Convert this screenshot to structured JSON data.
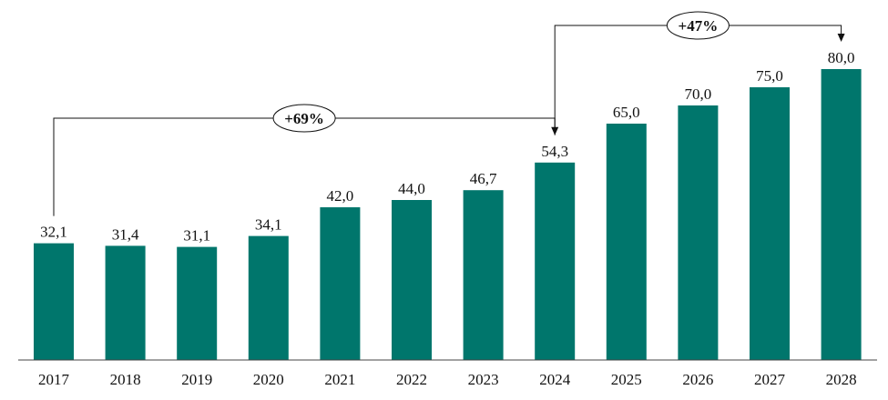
{
  "chart_data": {
    "type": "bar",
    "categories": [
      "2017",
      "2018",
      "2019",
      "2020",
      "2021",
      "2022",
      "2023",
      "2024",
      "2025",
      "2026",
      "2027",
      "2028"
    ],
    "values": [
      32.1,
      31.4,
      31.1,
      34.1,
      42.0,
      44.0,
      46.7,
      54.3,
      65.0,
      70.0,
      75.0,
      80.0
    ],
    "data_labels": [
      "32,1",
      "31,4",
      "31,1",
      "34,1",
      "42,0",
      "44,0",
      "46,7",
      "54,3",
      "65,0",
      "70,0",
      "75,0",
      "80,0"
    ],
    "title": "",
    "xlabel": "",
    "ylabel": "",
    "ylim": [
      0,
      80
    ],
    "grid": false,
    "bar_color": "#00766C",
    "annotations": [
      {
        "from": "2017",
        "to": "2024",
        "text": "+69%"
      },
      {
        "from": "2024",
        "to": "2028",
        "text": "+47%"
      }
    ]
  }
}
